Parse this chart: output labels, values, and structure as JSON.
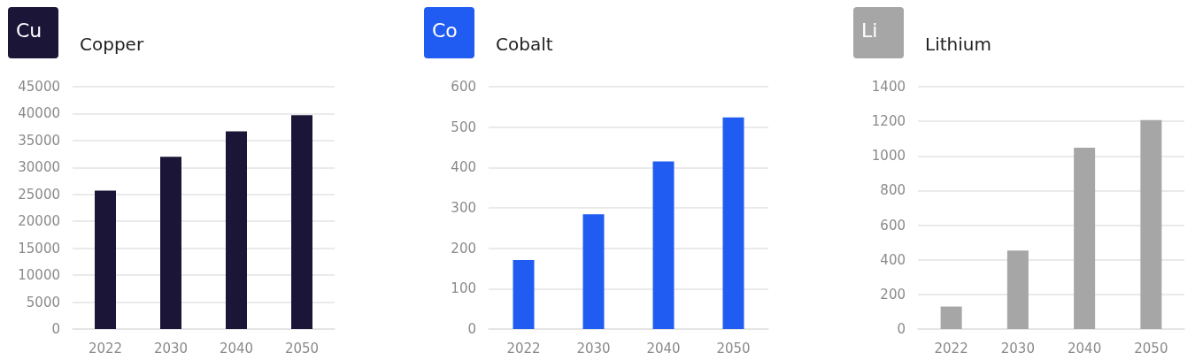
{
  "chart_data": [
    {
      "type": "bar",
      "title": "Copper",
      "annotations": [
        "Cu"
      ],
      "categories": [
        "2022",
        "2030",
        "2040",
        "2050"
      ],
      "values": [
        25700,
        32000,
        36700,
        39700
      ],
      "color": "#1b1537",
      "ylim": [
        0,
        45000
      ],
      "yticks": [
        0,
        5000,
        10000,
        15000,
        20000,
        25000,
        30000,
        35000,
        40000,
        45000
      ],
      "grid": "y"
    },
    {
      "type": "bar",
      "title": "Cobalt",
      "annotations": [
        "Co"
      ],
      "categories": [
        "2022",
        "2030",
        "2040",
        "2050"
      ],
      "values": [
        171,
        284,
        415,
        524
      ],
      "color": "#215cf2",
      "ylim": [
        0,
        600
      ],
      "yticks": [
        0,
        100,
        200,
        300,
        400,
        500,
        600
      ],
      "grid": "y"
    },
    {
      "type": "bar",
      "title": "Lithium",
      "annotations": [
        "Li"
      ],
      "categories": [
        "2022",
        "2030",
        "2040",
        "2050"
      ],
      "values": [
        130,
        453,
        1048,
        1207
      ],
      "color": "#a6a6a6",
      "ylim": [
        0,
        1400
      ],
      "yticks": [
        0,
        200,
        400,
        600,
        800,
        1000,
        1200,
        1400
      ],
      "grid": "y"
    }
  ]
}
